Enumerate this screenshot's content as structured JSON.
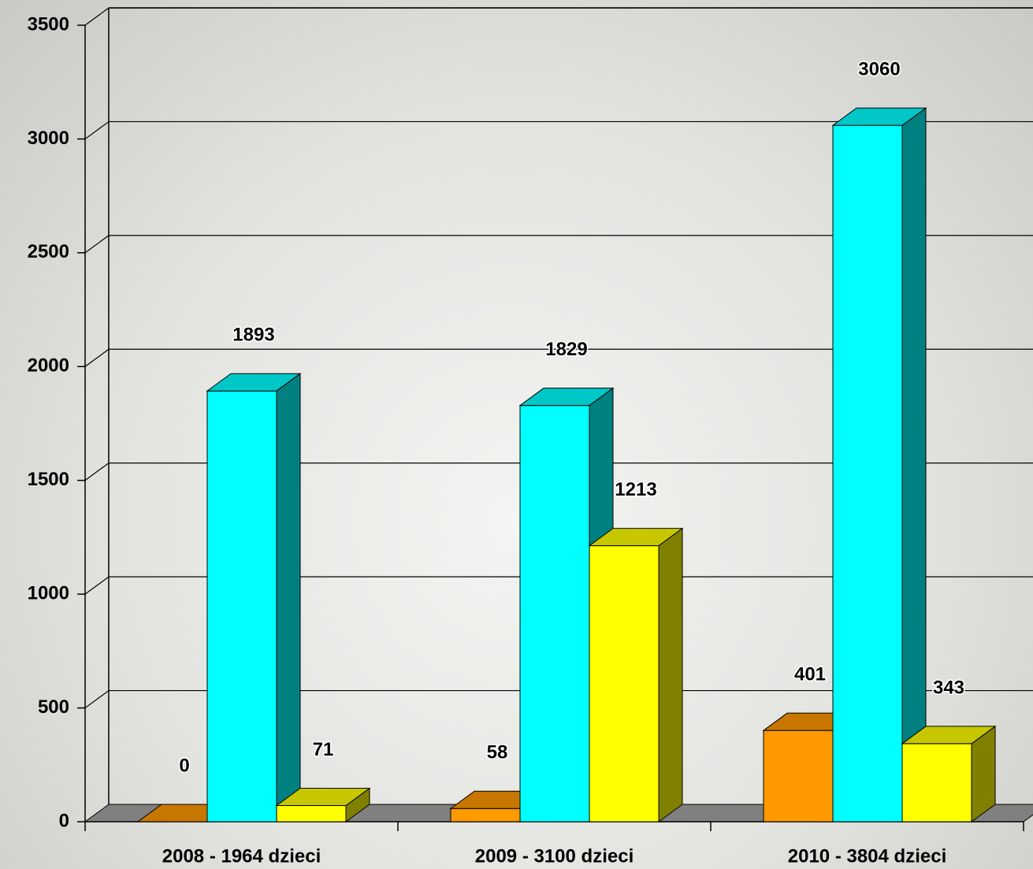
{
  "chart_data": {
    "type": "bar3d",
    "categories": [
      "2008 - 1964 dzieci",
      "2009 - 3100 dzieci",
      "2010 - 3804 dzieci"
    ],
    "series": [
      {
        "color": "#ff9900",
        "values": [
          0,
          58,
          401
        ]
      },
      {
        "color": "#00ffff",
        "values": [
          1893,
          1829,
          3060
        ]
      },
      {
        "color": "#ffff00",
        "values": [
          71,
          1213,
          343
        ]
      }
    ],
    "ylim": [
      0,
      3500
    ],
    "yticks": [
      0,
      500,
      1000,
      1500,
      2000,
      2500,
      3000,
      3500
    ],
    "grid": true
  }
}
